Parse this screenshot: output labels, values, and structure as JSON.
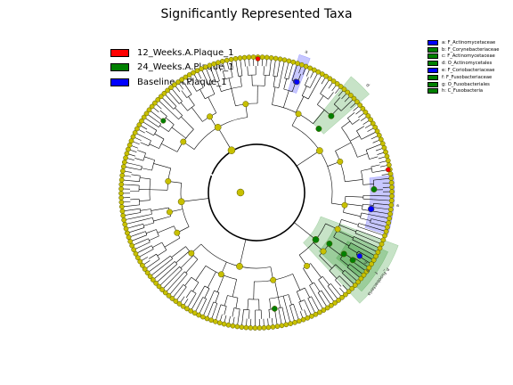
{
  "chart_data": {
    "type": "cladogram",
    "title": "Significantly Represented Taxa",
    "class_legend": [
      {
        "name": "12_Weeks.A.Plaque_1",
        "color": "#ff0000"
      },
      {
        "name": "24_Weeks.A.Plaque_1",
        "color": "#008000"
      },
      {
        "name": "Baseline.A.Plaque_1",
        "color": "#0000ff"
      }
    ],
    "clade_legend": [
      {
        "letter": "a",
        "name": "a: F_Actinomycetaceae",
        "class": "Baseline.A.Plaque_1",
        "color": "#0000ff"
      },
      {
        "letter": "b",
        "name": "b: F_Corynebacteriaceae",
        "class": "24_Weeks.A.Plaque_1",
        "color": "#008000"
      },
      {
        "letter": "c",
        "name": "c: F_Actinomycetaceae",
        "class": "24_Weeks.A.Plaque_1",
        "color": "#008000"
      },
      {
        "letter": "d",
        "name": "d: O_Actinomycetales",
        "class": "24_Weeks.A.Plaque_1",
        "color": "#008000"
      },
      {
        "letter": "e",
        "name": "e: F_Coriobacteriaceae",
        "class": "Baseline.A.Plaque_1",
        "color": "#0000ff"
      },
      {
        "letter": "f",
        "name": "f: F_Fusobacteriaceae",
        "class": "24_Weeks.A.Plaque_1",
        "color": "#008000"
      },
      {
        "letter": "g",
        "name": "g: O_Fusobacteriales",
        "class": "24_Weeks.A.Plaque_1",
        "color": "#008000"
      },
      {
        "letter": "h",
        "name": "h: C_Fusobacteria",
        "class": "24_Weeks.A.Plaque_1",
        "color": "#008000"
      }
    ],
    "highlight_labels": [
      "a",
      "d",
      "e",
      "f",
      "g",
      "h",
      "P_Fusobacteria"
    ],
    "node_default_color": "#c8c000",
    "node_outline_color": "#555500",
    "n_leaves": 190
  }
}
